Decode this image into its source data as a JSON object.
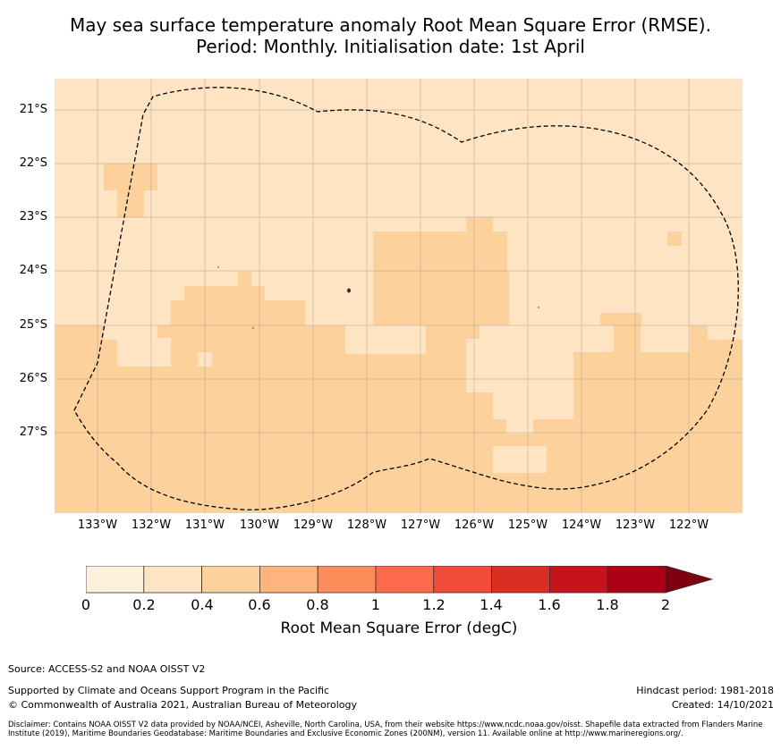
{
  "title": {
    "line1": "May sea surface temperature anomaly Root Mean Square Error (RMSE).",
    "line2": "Period: Monthly. Initialisation date: 1st April"
  },
  "map": {
    "lat_labels": [
      "21°S",
      "22°S",
      "23°S",
      "24°S",
      "25°S",
      "26°S",
      "27°S"
    ],
    "lon_labels": [
      "133°W",
      "132°W",
      "131°W",
      "130°W",
      "129°W",
      "128°W",
      "127°W",
      "126°W",
      "125°W",
      "124°W",
      "123°W",
      "122°W"
    ],
    "boundary_style": "dashed line (EEZ)",
    "grid": true,
    "dominant_values_degC": {
      "north": "0.2–0.4",
      "south": "0.4–0.6",
      "centre_patches": "0–0.2"
    },
    "colors": {
      "bin_0": "#fff0de",
      "bin_1": "#fee4c3",
      "bin_2": "#fdd19c"
    }
  },
  "colorbar": {
    "ticks": [
      "0",
      "0.2",
      "0.4",
      "0.6",
      "0.8",
      "1",
      "1.2",
      "1.4",
      "1.6",
      "1.8",
      "2"
    ],
    "colors": [
      "#fff0de",
      "#fee4c3",
      "#fdd19c",
      "#fdb57d",
      "#fd8c5a",
      "#fb6a4a",
      "#f34b3a",
      "#d92f22",
      "#c8131c",
      "#ac0016",
      "#7e0010"
    ],
    "extend": "max",
    "label": "Root Mean Square Error (degC)"
  },
  "footer": {
    "source": "Source: ACCESS-S2 and NOAA OISST V2",
    "supported": "Supported by Climate and Oceans Support Program in the Pacific",
    "copyright": "© Commonwealth of Australia 2021, Australian Bureau of Meteorology",
    "hindcast": "Hindcast period: 1981-2018",
    "created": "Created: 14/10/2021",
    "disclaimer": "Disclaimer: Contains NOAA OISST V2 data provided by NOAA/NCEI, Asheville, North Carolina, USA, from their website https://www.ncdc.noaa.gov/oisst. Shapefile data extracted from Flanders Marine Institute (2019), Maritime Boundaries Geodatabase: Maritime Boundaries and Exclusive Economic Zones (200NM), version 11. Available online at http://www.marineregions.org/."
  }
}
